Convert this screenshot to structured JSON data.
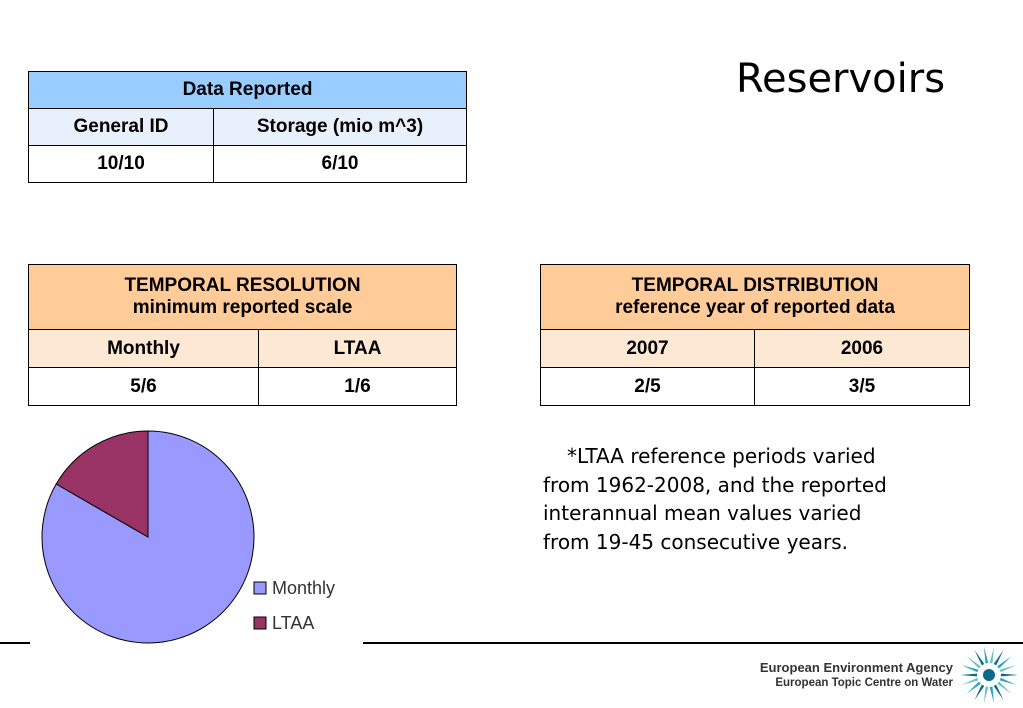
{
  "slide": {
    "title": "Reservoirs"
  },
  "data_reported": {
    "header": "Data Reported",
    "columns": [
      "General ID",
      "Storage (mio m^3)"
    ],
    "values": [
      "10/10",
      "6/10"
    ]
  },
  "temporal_resolution": {
    "header_line1": "TEMPORAL RESOLUTION",
    "header_line2": "minimum reported scale",
    "columns": [
      "Monthly",
      "LTAA"
    ],
    "values": [
      "5/6",
      "1/6"
    ]
  },
  "temporal_distribution": {
    "header_line1": "TEMPORAL DISTRIBUTION",
    "header_line2": "reference year of reported data",
    "columns": [
      "2007",
      "2006"
    ],
    "values": [
      "2/5",
      "3/5"
    ]
  },
  "note": {
    "line1": "*LTAA reference periods varied",
    "line2": "from 1962-2008, and the reported",
    "line3": "interannual mean values varied",
    "line4": "from 19-45 consecutive years."
  },
  "chart_data": {
    "type": "pie",
    "categories": [
      "Monthly",
      "LTAA"
    ],
    "values": [
      5,
      1
    ],
    "colors": [
      "#9999ff",
      "#993366"
    ],
    "legend": "right"
  },
  "footer": {
    "agency": "European Environment Agency",
    "centre": "European Topic Centre on Water",
    "logo_icon": "eea-sunburst-icon"
  }
}
